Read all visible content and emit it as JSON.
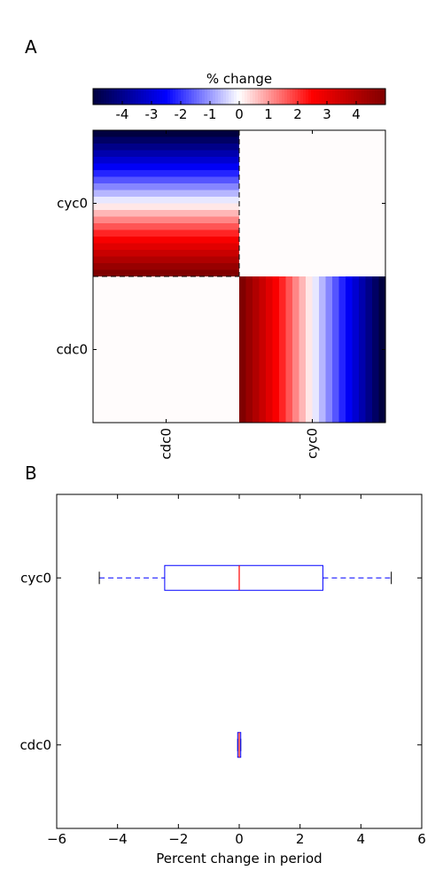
{
  "panels": {
    "a": {
      "label": "A"
    },
    "b": {
      "label": "B"
    }
  },
  "colors": {
    "cmap_low": "#00003f",
    "cmap_blue": "#0000ff",
    "cmap_mid": "#ffffff",
    "cmap_red": "#ff0000",
    "cmap_high": "#800000",
    "box": "#0000ff",
    "median": "#ff0000",
    "neutral_cell": "#fffcfc"
  },
  "chart_data": [
    {
      "type": "heatmap",
      "title": "",
      "colorbar": {
        "label": "% change",
        "range": [
          -5,
          5
        ],
        "ticks": [
          -4,
          -3,
          -2,
          -1,
          0,
          1,
          2,
          3,
          4
        ],
        "tick_labels": [
          "-4",
          "-3",
          "-2",
          "-1",
          "0",
          "1",
          "2",
          "3",
          "4"
        ],
        "colormap": "seismic"
      },
      "row_labels": [
        "cyc0",
        "cdc0"
      ],
      "col_labels": [
        "cdc0",
        "cyc0"
      ],
      "cells": [
        {
          "row": "cyc0",
          "col": "cdc0",
          "gradient": "vertical",
          "from": -5,
          "to": 5,
          "steps": 22
        },
        {
          "row": "cyc0",
          "col": "cyc0",
          "value": 0
        },
        {
          "row": "cdc0",
          "col": "cdc0",
          "value": 0
        },
        {
          "row": "cdc0",
          "col": "cyc0",
          "gradient": "horizontal",
          "from": 5,
          "to": -5,
          "steps": 22
        }
      ]
    },
    {
      "type": "box",
      "title": "",
      "orientation": "horizontal",
      "xlabel": "Percent change in period",
      "ylabel": "",
      "xlim": [
        -6,
        6
      ],
      "xticks": [
        -6,
        -4,
        -2,
        0,
        2,
        4,
        6
      ],
      "xtick_labels": [
        "−6",
        "−4",
        "−2",
        "0",
        "2",
        "4",
        "6"
      ],
      "categories": [
        "cdc0",
        "cyc0"
      ],
      "boxes": [
        {
          "name": "cyc0",
          "whislo": -4.6,
          "q1": -2.45,
          "med": 0.0,
          "q3": 2.75,
          "whishi": 5.0
        },
        {
          "name": "cdc0",
          "whislo": -0.05,
          "q1": -0.05,
          "med": 0.0,
          "q3": 0.05,
          "whishi": 0.05
        }
      ]
    }
  ]
}
